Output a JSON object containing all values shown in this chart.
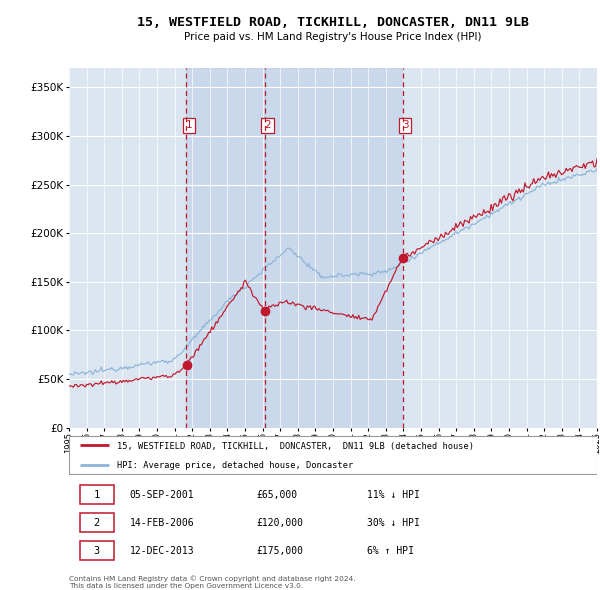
{
  "title": "15, WESTFIELD ROAD, TICKHILL, DONCASTER, DN11 9LB",
  "subtitle": "Price paid vs. HM Land Registry's House Price Index (HPI)",
  "legend_line1": "15, WESTFIELD ROAD, TICKHILL,  DONCASTER,  DN11 9LB (detached house)",
  "legend_line2": "HPI: Average price, detached house, Doncaster",
  "sale1_date": "05-SEP-2001",
  "sale1_price": 65000,
  "sale1_hpi_txt": "11% ↓ HPI",
  "sale1_year": 2001.67,
  "sale2_date": "14-FEB-2006",
  "sale2_price": 120000,
  "sale2_hpi_txt": "30% ↓ HPI",
  "sale2_year": 2006.12,
  "sale3_date": "12-DEC-2013",
  "sale3_price": 175000,
  "sale3_hpi_txt": "6% ↑ HPI",
  "sale3_year": 2013.95,
  "bg_color": "#dce6f1",
  "red_line_color": "#c0182c",
  "blue_line_color": "#8db4d9",
  "grid_color": "#ffffff",
  "ylim": [
    0,
    370000
  ],
  "yticks": [
    0,
    50000,
    100000,
    150000,
    200000,
    250000,
    300000,
    350000
  ],
  "xstart": 1995,
  "xend": 2025,
  "footnote": "Contains HM Land Registry data © Crown copyright and database right 2024.\nThis data is licensed under the Open Government Licence v3.0."
}
